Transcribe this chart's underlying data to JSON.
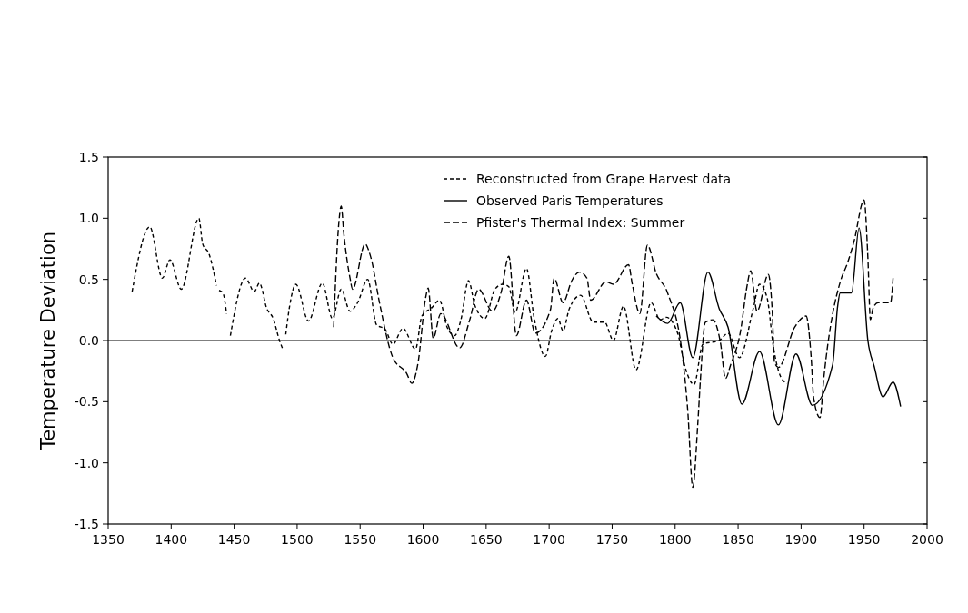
{
  "chart_data": {
    "type": "line",
    "ylabel": "Temperature Deviation",
    "xlim": [
      1350,
      2000
    ],
    "xticks": [
      1350,
      1400,
      1450,
      1500,
      1550,
      1600,
      1650,
      1700,
      1750,
      1800,
      1850,
      1900,
      1950,
      2000
    ],
    "ylim": [
      -1.5,
      1.5
    ],
    "yticks": [
      {
        "value": -1.5,
        "label": "-1.5"
      },
      {
        "value": -1,
        "label": "-1.0"
      },
      {
        "value": -0.5,
        "label": "-0.5"
      },
      {
        "value": 0,
        "label": "0.0"
      },
      {
        "value": 0.5,
        "label": "0.5"
      },
      {
        "value": 1,
        "label": "1.0"
      },
      {
        "value": 1.5,
        "label": "1.5"
      }
    ],
    "grid": false,
    "legend": "top right",
    "ref_lines": [
      {
        "axis": "y",
        "value": 0,
        "color": "#000000",
        "line_style": "solid"
      }
    ],
    "series": [
      {
        "name": "Reconstructed from Grape Harvest data",
        "color": "#000000",
        "line_style": "dotted",
        "x": [
          1369,
          1383,
          1393,
          1399,
          1408,
          1422,
          1425,
          1430,
          1436,
          1437,
          1438,
          1441,
          1444,
          1445,
          1447,
          1459,
          1466,
          1470,
          1476,
          1481,
          1486,
          1489,
          1490,
          1491,
          1494,
          1499,
          1509,
          1520,
          1528,
          1535,
          1542,
          1548,
          1556,
          1563,
          1570,
          1576,
          1584,
          1594,
          1599,
          1607,
          1613,
          1619,
          1625,
          1630,
          1636,
          1641,
          1649,
          1657,
          1663,
          1668,
          1673,
          1682,
          1688,
          1697,
          1702,
          1707,
          1711,
          1716,
          1725,
          1735,
          1744,
          1751,
          1759,
          1769,
          1781,
          1788,
          1793,
          1802,
          1808,
          1815,
          1822,
          1835,
          1842,
          1851,
          1862,
          1867,
          1873,
          1878,
          1884,
          1889
        ],
        "values": [
          0.4,
          0.93,
          0.51,
          0.66,
          0.42,
          1.0,
          0.79,
          0.71,
          0.45,
          null,
          0.41,
          0.39,
          0.22,
          null,
          0.04,
          0.51,
          0.4,
          0.47,
          0.26,
          0.18,
          0.0,
          -0.08,
          null,
          0.05,
          0.28,
          0.46,
          0.16,
          0.47,
          0.18,
          0.42,
          0.24,
          0.31,
          0.5,
          0.13,
          0.09,
          -0.03,
          0.1,
          -0.07,
          0.2,
          0.27,
          0.33,
          0.11,
          0.04,
          0.17,
          0.49,
          0.29,
          0.18,
          0.42,
          0.46,
          0.44,
          0.23,
          0.59,
          0.19,
          -0.13,
          0.08,
          0.18,
          0.08,
          0.26,
          0.37,
          0.15,
          0.15,
          0.0,
          0.28,
          -0.24,
          0.31,
          0.17,
          0.19,
          0.06,
          -0.22,
          -0.36,
          -0.03,
          0.0,
          0.06,
          -0.14,
          0.26,
          0.46,
          0.35,
          -0.05,
          -0.3,
          -0.35
        ]
      },
      {
        "name": "Observed Paris Temperatures",
        "color": "#000000",
        "line_style": "solid",
        "x": [
          1785,
          1794,
          1804,
          1814,
          1826,
          1835,
          1842,
          1853,
          1867,
          1882,
          1896,
          1909,
          1925,
          1929,
          1931,
          1940,
          1946,
          1953,
          1958,
          1965,
          1973,
          1979
        ],
        "values": [
          0.2,
          0.14,
          0.31,
          -0.14,
          0.56,
          0.26,
          0.11,
          -0.52,
          -0.09,
          -0.69,
          -0.11,
          -0.53,
          -0.2,
          0.28,
          0.39,
          0.39,
          0.92,
          0.0,
          -0.21,
          -0.46,
          -0.34,
          -0.54
        ]
      },
      {
        "name": "Pfister's Thermal Index: Summer",
        "color": "#000000",
        "line_style": "dashed",
        "x": [
          1529,
          1533,
          1535,
          1537,
          1542,
          1544,
          1554,
          1557,
          1559,
          1565,
          1576,
          1587,
          1591,
          1596,
          1602,
          1604,
          1608,
          1614,
          1629,
          1637,
          1644,
          1655,
          1662,
          1668,
          1674,
          1682,
          1689,
          1701,
          1704,
          1711,
          1718,
          1724,
          1730,
          1733,
          1745,
          1751,
          1763,
          1766,
          1772,
          1778,
          1785,
          1794,
          1806,
          1810,
          1814,
          1818,
          1820,
          1824,
          1830,
          1836,
          1840,
          1844,
          1852,
          1857,
          1860,
          1865,
          1874,
          1877,
          1879,
          1882,
          1895,
          1904,
          1908,
          1910,
          1915,
          1918,
          1932,
          1936,
          1942,
          1950,
          1953,
          1955,
          1957,
          1961,
          1971,
          1973
        ],
        "values": [
          0.11,
          0.95,
          1.1,
          0.88,
          0.51,
          0.42,
          0.79,
          0.73,
          0.66,
          0.33,
          -0.14,
          -0.27,
          -0.35,
          -0.18,
          0.35,
          0.43,
          0.02,
          0.22,
          -0.06,
          0.17,
          0.42,
          0.24,
          0.4,
          0.69,
          0.04,
          0.33,
          0.06,
          0.25,
          0.51,
          0.31,
          0.49,
          0.56,
          0.51,
          0.33,
          0.48,
          0.46,
          0.62,
          0.46,
          0.22,
          0.78,
          0.55,
          0.39,
          -0.14,
          -0.57,
          -1.2,
          -0.68,
          -0.33,
          0.15,
          0.17,
          -0.02,
          -0.31,
          -0.2,
          0.08,
          0.44,
          0.57,
          0.24,
          0.54,
          0.26,
          -0.18,
          -0.22,
          0.11,
          0.2,
          -0.14,
          -0.47,
          -0.63,
          -0.31,
          0.51,
          0.61,
          0.81,
          1.15,
          0.68,
          0.17,
          0.26,
          0.31,
          0.31,
          0.51
        ]
      }
    ]
  }
}
